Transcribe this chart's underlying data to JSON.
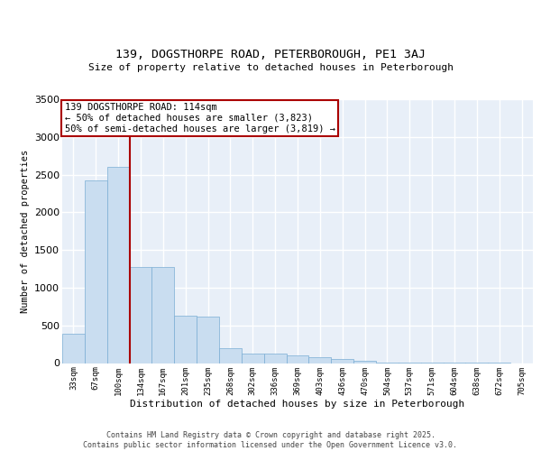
{
  "title1": "139, DOGSTHORPE ROAD, PETERBOROUGH, PE1 3AJ",
  "title2": "Size of property relative to detached houses in Peterborough",
  "xlabel": "Distribution of detached houses by size in Peterborough",
  "ylabel": "Number of detached properties",
  "footer1": "Contains HM Land Registry data © Crown copyright and database right 2025.",
  "footer2": "Contains public sector information licensed under the Open Government Licence v3.0.",
  "bar_color": "#c9ddf0",
  "bar_edge_color": "#7aadd4",
  "bg_color": "#e8eff8",
  "grid_color": "#ffffff",
  "vline_color": "#aa0000",
  "annotation_box_color": "#aa0000",
  "bins": [
    "33sqm",
    "67sqm",
    "100sqm",
    "134sqm",
    "167sqm",
    "201sqm",
    "235sqm",
    "268sqm",
    "302sqm",
    "336sqm",
    "369sqm",
    "403sqm",
    "436sqm",
    "470sqm",
    "504sqm",
    "537sqm",
    "571sqm",
    "604sqm",
    "638sqm",
    "672sqm",
    "705sqm"
  ],
  "values": [
    390,
    2420,
    2600,
    1270,
    1270,
    630,
    620,
    200,
    130,
    120,
    100,
    80,
    50,
    30,
    10,
    5,
    3,
    2,
    1,
    1,
    0
  ],
  "property_label": "139 DOGSTHORPE ROAD: 114sqm",
  "annotation_line1": "← 50% of detached houses are smaller (3,823)",
  "annotation_line2": "50% of semi-detached houses are larger (3,819) →",
  "ylim": [
    0,
    3500
  ],
  "yticks": [
    0,
    500,
    1000,
    1500,
    2000,
    2500,
    3000,
    3500
  ]
}
